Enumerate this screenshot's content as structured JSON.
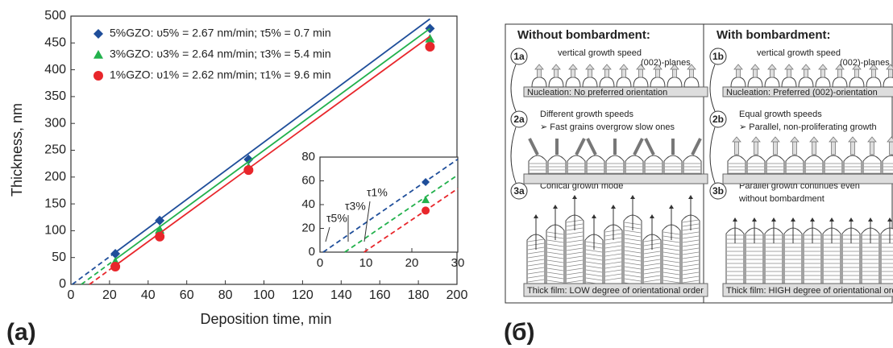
{
  "chart_data": [
    {
      "type": "line",
      "x_label": "Deposition time, min",
      "y_label": "Thickness, nm",
      "xlim": [
        0,
        200
      ],
      "xticks": [
        0,
        20,
        40,
        60,
        80,
        100,
        120,
        140,
        160,
        180,
        200
      ],
      "ylim": [
        0,
        500
      ],
      "yticks": [
        0,
        50,
        100,
        150,
        200,
        250,
        300,
        350,
        400,
        450,
        500
      ],
      "x": [
        23,
        46,
        92,
        186
      ],
      "series": [
        {
          "name": "5%GZO: υ5% = 2.67 nm/min; τ5% = 0.7 min",
          "color": "#1f4e9a",
          "marker": "diamond",
          "rate": 2.67,
          "tau": 0.7,
          "values": [
            57,
            119,
            233,
            477
          ]
        },
        {
          "name": "3%GZO: υ3% = 2.64 nm/min; τ3% = 5.4 min",
          "color": "#22b14c",
          "marker": "triangle",
          "rate": 2.64,
          "tau": 5.4,
          "values": [
            42,
            102,
            218,
            458
          ]
        },
        {
          "name": "1%GZO: υ1% = 2.62 nm/min; τ1% = 9.6 min",
          "color": "#e8262b",
          "marker": "circle",
          "rate": 2.62,
          "tau": 9.6,
          "values": [
            33,
            89,
            213,
            443
          ]
        }
      ]
    },
    {
      "type": "line",
      "inset": true,
      "xlim": [
        0,
        30
      ],
      "xticks": [
        0,
        10,
        20,
        30
      ],
      "ylim": [
        0,
        80
      ],
      "yticks": [
        0,
        20,
        40,
        60,
        80
      ],
      "x": [
        23
      ],
      "series": [
        {
          "color": "#1f4e9a",
          "marker": "diamond",
          "rate": 2.67,
          "tau": 0.7,
          "values": [
            59
          ]
        },
        {
          "color": "#22b14c",
          "marker": "triangle",
          "rate": 2.64,
          "tau": 5.4,
          "values": [
            44
          ]
        },
        {
          "color": "#e8262b",
          "marker": "circle",
          "rate": 2.62,
          "tau": 9.6,
          "values": [
            35
          ]
        }
      ],
      "annotations": [
        "τ5%",
        "τ3%",
        "τ1%"
      ]
    }
  ],
  "panel_labels": [
    "(a)",
    "(б)"
  ],
  "diagram": {
    "columns": [
      {
        "title": "Without bombardment:",
        "steps": [
          {
            "label": "1a",
            "texts": [
              "vertical growth speed",
              "(002)-planes"
            ],
            "base": "Nucleation:  No preferred orientation"
          },
          {
            "label": "2a",
            "texts": [
              "Different growth speeds",
              "➢  Fast grains overgrow slow ones"
            ]
          },
          {
            "label": "3a",
            "texts": [
              "Conical growth mode"
            ],
            "base": "Thick film:  LOW degree of orientational order"
          }
        ]
      },
      {
        "title": "With bombardment:",
        "steps": [
          {
            "label": "1b",
            "texts": [
              "vertical growth speed",
              "(002)-planes"
            ],
            "base": "Nucleation:  Preferred (002)-orientation"
          },
          {
            "label": "2b",
            "texts": [
              "Equal growth speeds",
              "➢  Parallel, non-proliferating growth"
            ]
          },
          {
            "label": "3b",
            "texts": [
              "Parallel growth continues even",
              "without bombardment"
            ],
            "base": "Thick film:  HIGH degree of orientational order"
          }
        ]
      }
    ]
  }
}
